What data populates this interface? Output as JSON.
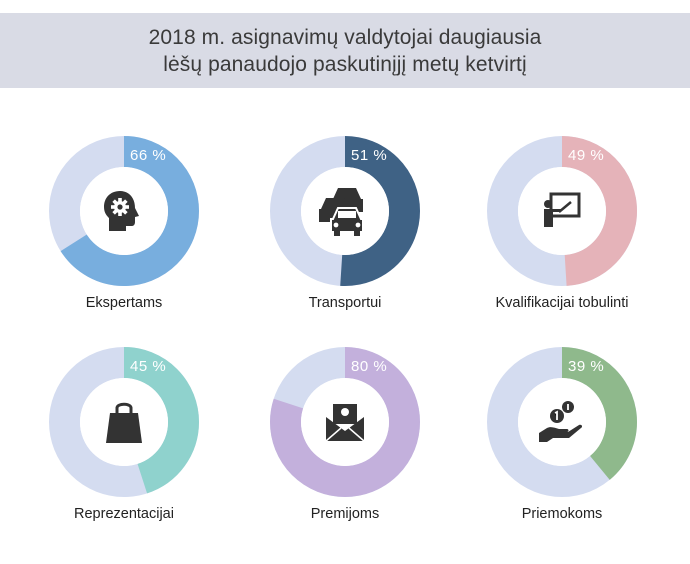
{
  "title": {
    "line1": "2018 m. asignavimų valdytojai daugiausia",
    "line2": "lėšų panaudojo paskutinįjį metų ketvirtį"
  },
  "colors": {
    "track": "#d4dcf0",
    "header_bg": "#d9dbe5"
  },
  "chart_data": [
    {
      "type": "pie",
      "label": "Ekspertams",
      "value": 66,
      "percent_text": "66 %",
      "color": "#78aede",
      "icon": "brain-gear-icon"
    },
    {
      "type": "pie",
      "label": "Transportui",
      "value": 51,
      "percent_text": "51 %",
      "color": "#3f6285",
      "icon": "cars-icon"
    },
    {
      "type": "pie",
      "label": "Kvalifikacijai tobulinti",
      "value": 49,
      "percent_text": "49 %",
      "color": "#e5b3b9",
      "icon": "presentation-board-icon"
    },
    {
      "type": "pie",
      "label": "Reprezentacijai",
      "value": 45,
      "percent_text": "45 %",
      "color": "#8fd2cd",
      "icon": "shopping-bag-icon"
    },
    {
      "type": "pie",
      "label": "Premijoms",
      "value": 80,
      "percent_text": "80 %",
      "color": "#c3b0dc",
      "icon": "money-envelope-icon"
    },
    {
      "type": "pie",
      "label": "Priemokoms",
      "value": 39,
      "percent_text": "39 %",
      "color": "#8fb98c",
      "icon": "hand-coins-icon"
    }
  ]
}
